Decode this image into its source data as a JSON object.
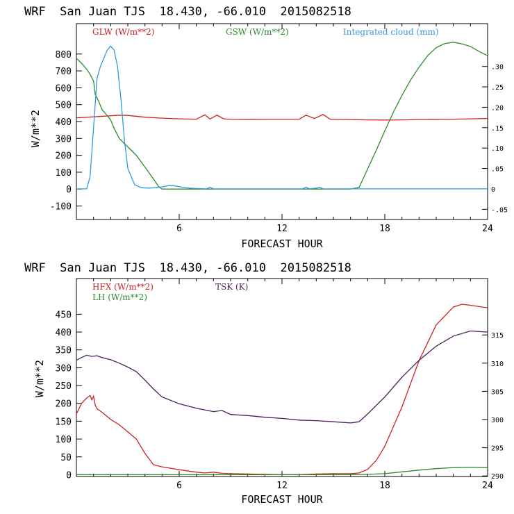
{
  "chart_data": [
    {
      "type": "line",
      "title": "WRF  San Juan TJS  18.430, -66.010  2015082518",
      "xlabel": "FORECAST HOUR",
      "ylabel": "W/m**2",
      "xlim": [
        0,
        24
      ],
      "ylim": [
        -180,
        980
      ],
      "y2lim": [
        -0.075,
        0.405
      ],
      "x_ticks": [
        "6",
        "12",
        "18",
        "24"
      ],
      "y_ticks": [
        "-100",
        "0",
        "100",
        "200",
        "300",
        "400",
        "500",
        "600",
        "700",
        "800"
      ],
      "y2_ticks": [
        "-.05",
        "0",
        ".05",
        ".10",
        ".15",
        ".20",
        ".25",
        ".30"
      ],
      "grid": false,
      "series": [
        {
          "name": "GLW (W/m**2)",
          "color": "#cc2222",
          "axis": "left",
          "x": [
            0,
            1,
            2,
            2.5,
            3,
            4,
            5,
            6,
            7,
            7.5,
            7.8,
            8.2,
            8.6,
            9,
            10,
            11,
            12,
            13,
            13.4,
            13.9,
            14.4,
            14.8,
            15,
            16,
            17,
            18,
            19,
            20,
            21,
            22,
            23,
            24
          ],
          "values": [
            422,
            428,
            434,
            438,
            436,
            426,
            420,
            416,
            414,
            440,
            415,
            438,
            416,
            414,
            413,
            414,
            414,
            414,
            438,
            418,
            442,
            414,
            414,
            412,
            410,
            409,
            410,
            412,
            413,
            414,
            416,
            418
          ]
        },
        {
          "name": "GSW (W/m**2)",
          "color": "#2e8b2e",
          "axis": "left",
          "x": [
            0,
            0.3,
            0.6,
            0.8,
            1.0,
            1.1,
            1.3,
            1.5,
            1.8,
            2.0,
            2.2,
            2.5,
            3.0,
            3.5,
            4.0,
            4.5,
            4.8,
            5.0,
            16.0,
            16.5,
            17.0,
            17.5,
            18.0,
            18.5,
            19.0,
            19.5,
            20.0,
            20.5,
            21.0,
            21.5,
            22.0,
            22.5,
            23.0,
            23.5,
            24.0
          ],
          "values": [
            775,
            745,
            710,
            680,
            640,
            560,
            520,
            470,
            435,
            410,
            360,
            300,
            250,
            200,
            130,
            60,
            15,
            0,
            0,
            10,
            120,
            230,
            345,
            455,
            555,
            645,
            722,
            790,
            838,
            862,
            870,
            860,
            845,
            815,
            790
          ]
        },
        {
          "name": "Integrated cloud (mm)",
          "color": "#3399dd",
          "axis": "right",
          "x": [
            0,
            0.6,
            0.8,
            1.0,
            1.2,
            1.4,
            1.6,
            1.8,
            2.0,
            2.2,
            2.4,
            2.6,
            2.8,
            3.0,
            3.4,
            3.8,
            4.2,
            4.6,
            5.0,
            5.4,
            5.8,
            6.2,
            6.6,
            7.0,
            7.6,
            7.8,
            8.0,
            13.2,
            13.4,
            13.6,
            14.0,
            14.2,
            14.4,
            24
          ],
          "values": [
            0,
            0,
            0.03,
            0.15,
            0.27,
            0.3,
            0.32,
            0.34,
            0.35,
            0.34,
            0.3,
            0.22,
            0.12,
            0.05,
            0.01,
            0.003,
            0.002,
            0.003,
            0.005,
            0.008,
            0.007,
            0.004,
            0.002,
            0.001,
            0.0,
            0.004,
            0.0,
            0.0,
            0.004,
            0.0,
            0.002,
            0.004,
            0.0,
            0.0
          ]
        }
      ],
      "legend": "top"
    },
    {
      "type": "line",
      "title": "WRF  San Juan TJS  18.430, -66.010  2015082518",
      "xlabel": "FORECAST HOUR",
      "ylabel": "W/m**2",
      "xlim": [
        0,
        24
      ],
      "ylim": [
        -5,
        550
      ],
      "y2lim": [
        289.9,
        325
      ],
      "x_ticks": [
        "6",
        "12",
        "18",
        "24"
      ],
      "y_ticks": [
        "0",
        "50",
        "100",
        "150",
        "200",
        "250",
        "300",
        "350",
        "400",
        "450"
      ],
      "y2_ticks": [
        "290",
        "295",
        "300",
        "305",
        "310",
        "315"
      ],
      "grid": false,
      "series": [
        {
          "name": "HFX (W/m**2)",
          "color": "#cc2222",
          "axis": "left",
          "x": [
            0,
            0.3,
            0.6,
            0.8,
            0.9,
            1.0,
            1.1,
            1.2,
            1.5,
            2.0,
            2.5,
            3.0,
            3.5,
            4.0,
            4.5,
            5.0,
            6.0,
            7.0,
            7.5,
            8.0,
            8.5,
            9.0,
            10,
            11,
            12,
            13,
            14,
            15,
            16,
            16.5,
            17,
            17.5,
            18,
            19,
            20,
            21,
            22,
            22.5,
            23,
            24
          ],
          "values": [
            170,
            200,
            215,
            222,
            210,
            220,
            195,
            185,
            175,
            155,
            140,
            120,
            100,
            60,
            28,
            22,
            14,
            7,
            5,
            7,
            4,
            3,
            2,
            1,
            0,
            0,
            2,
            3,
            3,
            5,
            15,
            40,
            80,
            190,
            320,
            420,
            470,
            478,
            475,
            468
          ]
        },
        {
          "name": "LH (W/m**2)",
          "color": "#2e8b2e",
          "axis": "left",
          "x": [
            0,
            4,
            8,
            12,
            16,
            17,
            18,
            19,
            20,
            21,
            22,
            23,
            24
          ],
          "values": [
            0,
            0,
            0,
            0,
            0,
            1,
            3,
            8,
            13,
            17,
            20,
            21,
            20
          ]
        },
        {
          "name": "TSK (K)",
          "color": "#4b1d5e",
          "axis": "right",
          "x": [
            0,
            0.3,
            0.6,
            0.9,
            1.2,
            1.5,
            2.0,
            2.5,
            3.0,
            3.5,
            4.0,
            4.5,
            5.0,
            6.0,
            7.0,
            8.0,
            8.5,
            9.0,
            10,
            11,
            12,
            13,
            14,
            15,
            16,
            16.5,
            17,
            18,
            19,
            20,
            21,
            22,
            23,
            24
          ],
          "values": [
            310.5,
            311.0,
            311.4,
            311.2,
            311.3,
            311.0,
            310.6,
            310.0,
            309.3,
            308.5,
            307.0,
            305.4,
            304.0,
            302.8,
            302.0,
            301.4,
            301.6,
            300.9,
            300.7,
            300.4,
            300.2,
            299.9,
            299.8,
            299.6,
            299.4,
            299.6,
            301.0,
            304.0,
            307.5,
            310.5,
            313.0,
            314.8,
            315.7,
            315.5
          ]
        }
      ],
      "legend": "top-left"
    }
  ]
}
